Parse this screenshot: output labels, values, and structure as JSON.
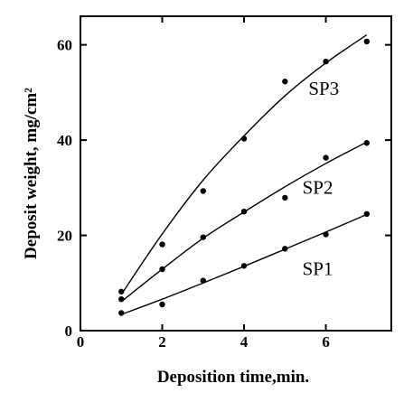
{
  "chart_data": {
    "type": "scatter",
    "title": "",
    "xlabel": "Deposition time,min.",
    "ylabel": "Deposit weight, mg/cm²",
    "xlim": [
      0,
      7.6
    ],
    "ylim": [
      0,
      66
    ],
    "xticks": [
      0,
      2,
      4,
      6
    ],
    "yticks": [
      0,
      20,
      40,
      60
    ],
    "grid": false,
    "series": [
      {
        "name": "SP3",
        "x": [
          1,
          2,
          3,
          4,
          5,
          6,
          7
        ],
        "values": [
          8.2,
          18.1,
          29.3,
          40.3,
          52.3,
          56.5,
          60.7
        ],
        "fit": [
          [
            1,
            7.6
          ],
          [
            2,
            20.3
          ],
          [
            3,
            31.6
          ],
          [
            4,
            40.9
          ],
          [
            5,
            49.3
          ],
          [
            6,
            56.2
          ],
          [
            7,
            62.1
          ]
        ],
        "label_at": [
          5.95,
          49.5
        ]
      },
      {
        "name": "SP2",
        "x": [
          1,
          2,
          3,
          4,
          5,
          6,
          7
        ],
        "values": [
          6.6,
          12.9,
          19.6,
          25.0,
          27.9,
          36.3,
          39.4
        ],
        "fit": [
          [
            1,
            6.1
          ],
          [
            2,
            12.9
          ],
          [
            3,
            19.4
          ],
          [
            4,
            24.9
          ],
          [
            5,
            30.2
          ],
          [
            6,
            35.1
          ],
          [
            7,
            39.6
          ]
        ],
        "label_at": [
          5.8,
          28.7
        ]
      },
      {
        "name": "SP1",
        "x": [
          1,
          2,
          3,
          4,
          5,
          6,
          7
        ],
        "values": [
          3.7,
          5.5,
          10.5,
          13.6,
          17.2,
          20.2,
          24.5
        ],
        "fit": [
          [
            1,
            3.4
          ],
          [
            2,
            6.6
          ],
          [
            3,
            10.0
          ],
          [
            4,
            13.5
          ],
          [
            5,
            17.1
          ],
          [
            6,
            20.7
          ],
          [
            7,
            24.4
          ]
        ],
        "label_at": [
          5.8,
          11.7
        ]
      }
    ]
  }
}
